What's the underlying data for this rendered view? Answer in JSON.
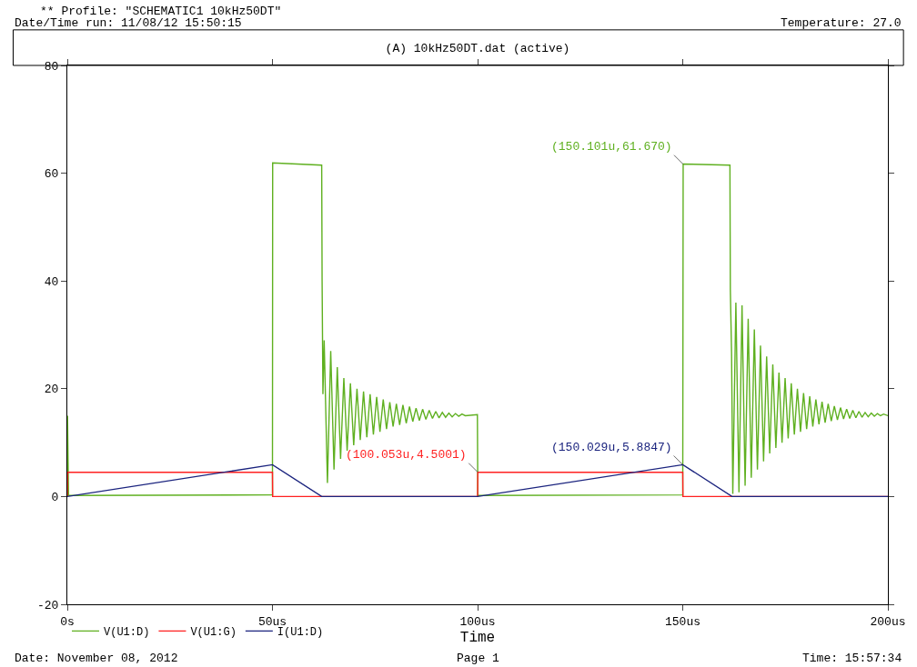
{
  "chart_data": {
    "type": "line",
    "title": "(A) 10kHz50DT.dat (active)",
    "xlabel": "Time",
    "xlim": [
      0,
      200
    ],
    "ylim": [
      -20,
      80
    ],
    "xticks": [
      {
        "value": 0,
        "label": "0s"
      },
      {
        "value": 50,
        "label": "50us"
      },
      {
        "value": 100,
        "label": "100us"
      },
      {
        "value": 150,
        "label": "150us"
      },
      {
        "value": 200,
        "label": "200us"
      }
    ],
    "yticks": [
      -20,
      0,
      20,
      40,
      60,
      80
    ],
    "legend": "bottom left",
    "line_style": "solid",
    "series": [
      {
        "name": "V(U1:D)",
        "color": "#5fb020",
        "x": [
          0,
          0.05,
          0.3,
          50,
          50.05,
          62,
          62.1,
          62.3,
          62.6,
          63.4,
          64.2,
          65.0,
          65.8,
          66.6,
          67.4,
          68.2,
          69.0,
          69.8,
          70.6,
          71.4,
          72.2,
          73.0,
          73.8,
          74.6,
          75.4,
          76.2,
          77.0,
          77.8,
          78.6,
          79.4,
          80.2,
          81.0,
          81.8,
          82.6,
          83.4,
          84.2,
          85.0,
          85.8,
          86.6,
          87.4,
          88.2,
          89.0,
          89.8,
          90.6,
          91.4,
          92.2,
          93.0,
          93.8,
          94.6,
          95.4,
          96.2,
          97.0,
          99.95,
          100.05,
          150,
          150.101,
          161.5,
          161.6,
          161.9,
          162.2,
          162.95,
          163.7,
          164.45,
          165.2,
          165.95,
          166.7,
          167.45,
          168.2,
          168.95,
          169.7,
          170.45,
          171.2,
          171.95,
          172.7,
          173.45,
          174.2,
          174.95,
          175.7,
          176.45,
          177.2,
          177.95,
          178.7,
          179.45,
          180.2,
          180.95,
          181.7,
          182.45,
          183.2,
          183.95,
          184.7,
          185.45,
          186.2,
          186.95,
          187.7,
          188.45,
          189.2,
          189.95,
          190.7,
          191.45,
          192.2,
          192.95,
          193.7,
          194.45,
          195.2,
          195.95,
          196.7,
          197.45,
          198.2,
          198.95,
          200
        ],
        "values": [
          0,
          15,
          0.2,
          0.3,
          61.9,
          61.5,
          40,
          19,
          29,
          2.5,
          27,
          5,
          24,
          7,
          22,
          8.5,
          21,
          9.5,
          20,
          10.5,
          19.5,
          11,
          19,
          11.5,
          18.5,
          12,
          18,
          12.5,
          17.5,
          13,
          17.2,
          13.3,
          17,
          13.6,
          16.7,
          13.9,
          16.4,
          14.1,
          16.2,
          14.3,
          16,
          14.5,
          15.8,
          14.6,
          15.6,
          14.7,
          15.5,
          14.8,
          15.4,
          14.9,
          15.3,
          15.0,
          15.2,
          0.2,
          0.3,
          61.7,
          61.5,
          38.4,
          26.6,
          0.5,
          36,
          0.8,
          35.5,
          2,
          33,
          3.5,
          31,
          5,
          28,
          6.5,
          26,
          8,
          24.5,
          9,
          23,
          10,
          22,
          10.8,
          21,
          11.5,
          20,
          12,
          19.2,
          12.5,
          18.6,
          13,
          18,
          13.4,
          17.6,
          13.7,
          17.2,
          14,
          16.8,
          14.2,
          16.5,
          14.4,
          16.2,
          14.5,
          16,
          14.6,
          15.8,
          14.7,
          15.6,
          14.8,
          15.5,
          14.9,
          15.4,
          15,
          15.3,
          15
        ]
      },
      {
        "name": "V(U1:G)",
        "color": "#ff2020",
        "x": [
          0,
          0.05,
          50,
          50.05,
          100,
          100.053,
          150,
          150.05,
          200
        ],
        "values": [
          0,
          4.5,
          4.5,
          0,
          0,
          4.5,
          4.5,
          0,
          0
        ]
      },
      {
        "name": "I(U1:D)",
        "color": "#1a237e",
        "x": [
          0,
          50,
          62,
          100,
          150.029,
          162,
          200
        ],
        "values": [
          0,
          5.9,
          0,
          0,
          5.9,
          0,
          0
        ]
      }
    ],
    "annotations": [
      {
        "text": "(100.053u,4.5001)",
        "x": 100.053,
        "y": 4.5001
      },
      {
        "text": "(150.029u,5.8847)",
        "x": 150.029,
        "y": 5.8847
      },
      {
        "text": "(150.101u,61.670)",
        "x": 150.101,
        "y": 61.67
      },
      "** Profile: \"SCHEMATIC1 10kHz50DT\"",
      "Date/Time run: 11/08/12 15:50:15",
      "Temperature: 27.0",
      "Date: November 08, 2012",
      "Page 1",
      "Time: 15:57:34"
    ]
  }
}
